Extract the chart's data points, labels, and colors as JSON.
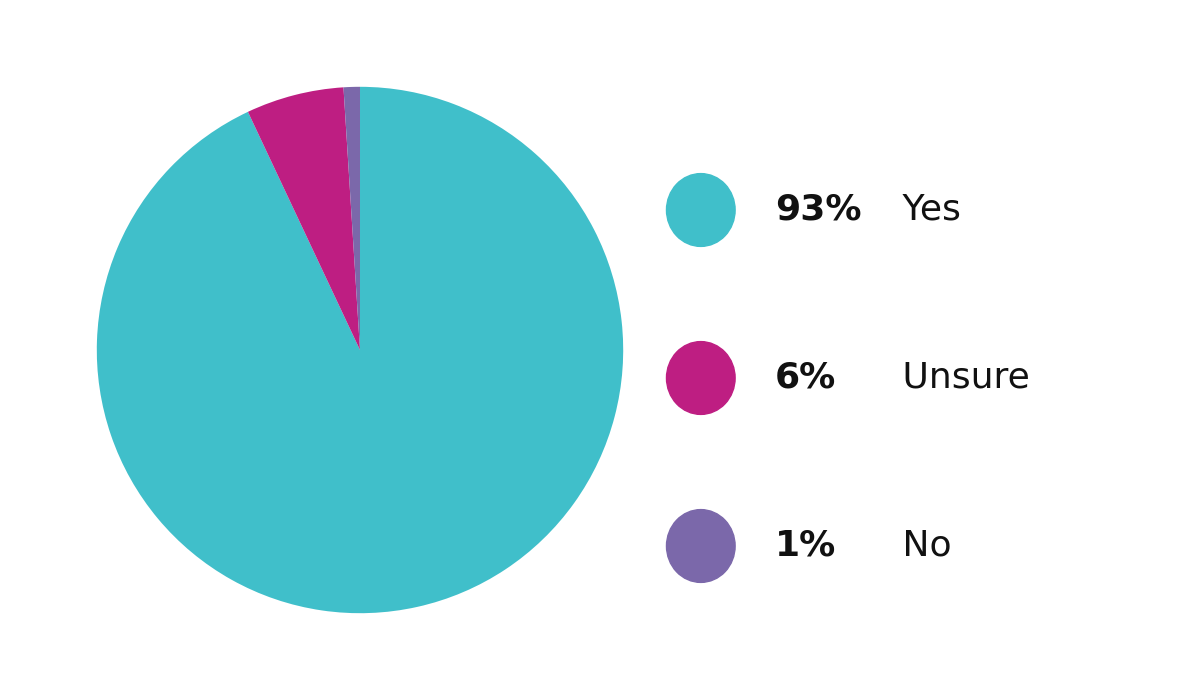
{
  "slices": [
    93,
    6,
    1
  ],
  "labels": [
    "Yes",
    "Unsure",
    "No"
  ],
  "percentages": [
    "93%",
    "6%",
    "1%"
  ],
  "colors": [
    "#40BFCA",
    "#BE1E82",
    "#7B68AA"
  ],
  "background_color": "#ffffff",
  "legend_fontsize": 26,
  "startangle": 90,
  "counterclock": false
}
